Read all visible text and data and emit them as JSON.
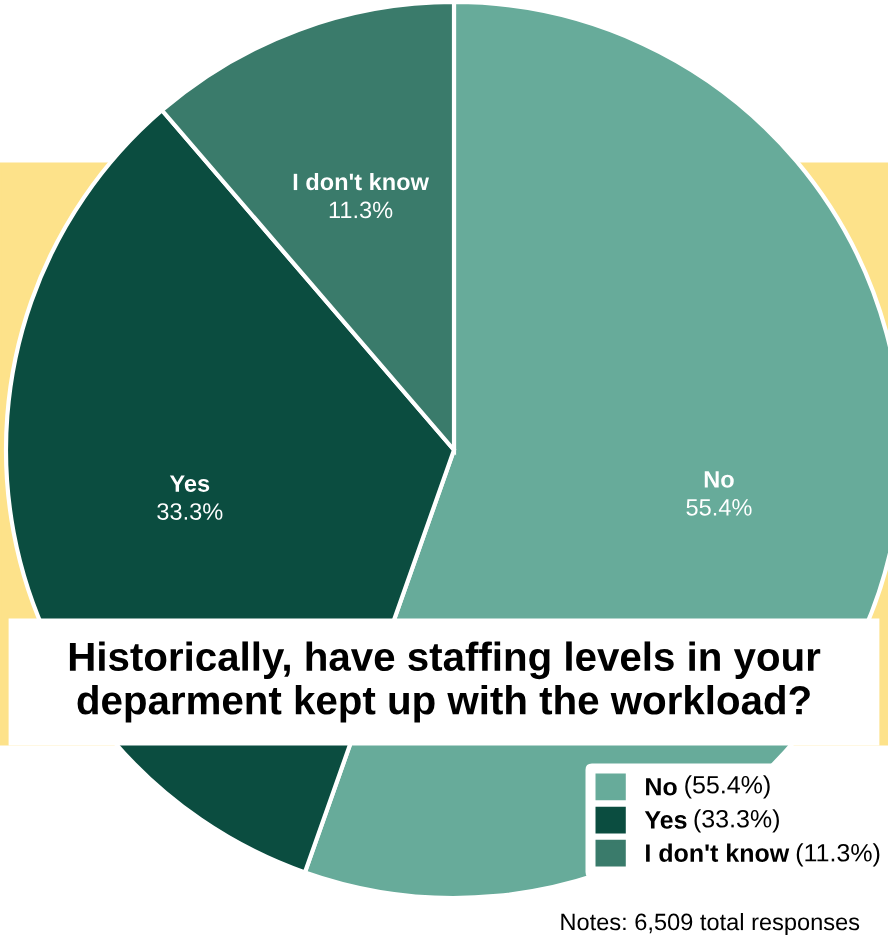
{
  "chart_data": {
    "type": "pie",
    "title": "Historically, have staffing levels in your deparment kept up with the workload?",
    "categories": [
      "No",
      "Yes",
      "I don't know"
    ],
    "values": [
      55.4,
      33.3,
      11.3
    ],
    "value_labels": [
      "55.4%",
      "33.3%",
      "11.3%"
    ],
    "colors": [
      "#67ab9a",
      "#0b4d40",
      "#3a7b6b"
    ],
    "legend": "bottom right",
    "annotations": [
      "(55.4%)",
      "(33.3%)",
      "(11.3%)",
      "Notes: 6,509 total responses"
    ]
  }
}
